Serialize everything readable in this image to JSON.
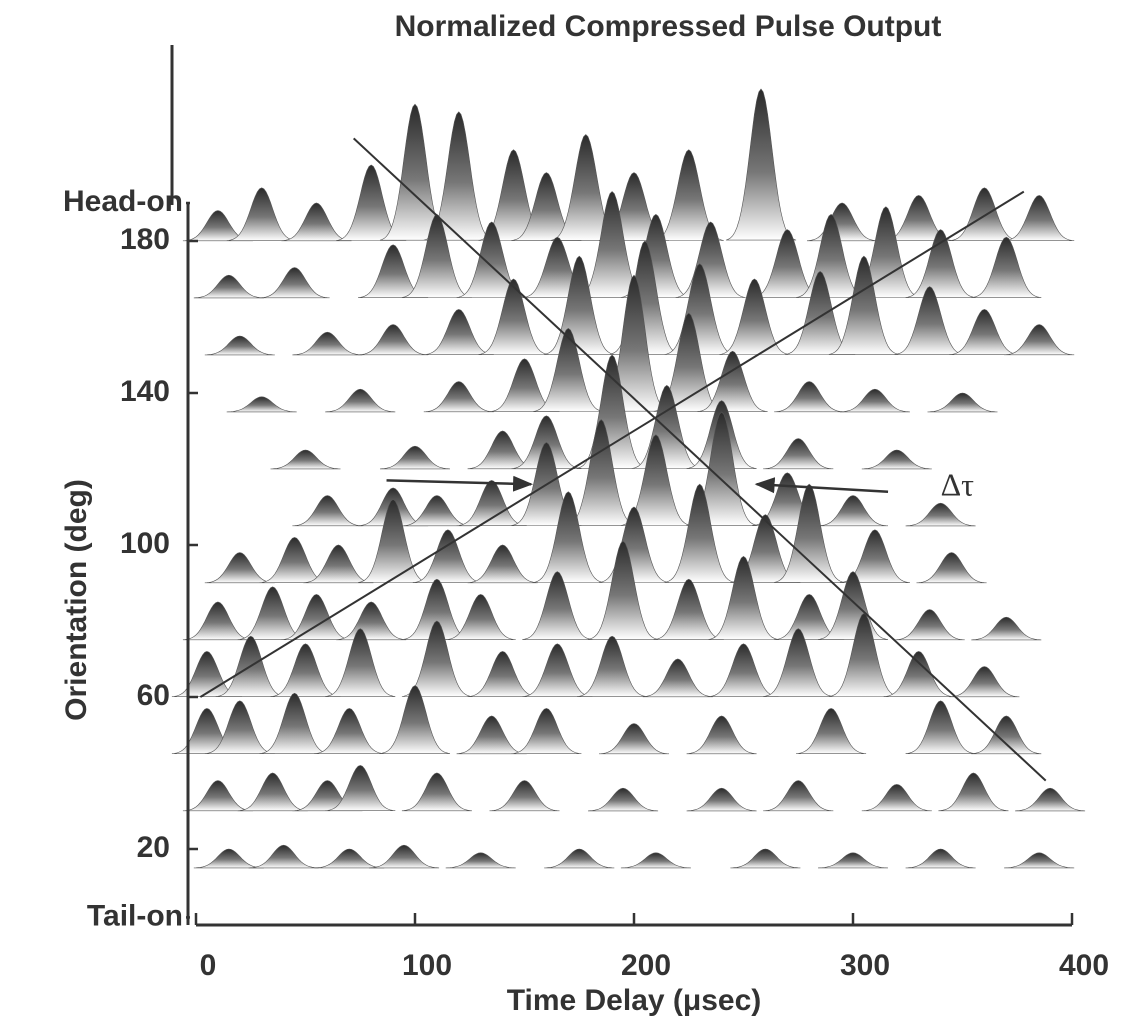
{
  "chart_data": {
    "type": "waterfall",
    "title": "Normalized Compressed Pulse Output",
    "x_label": "Time Delay (μsec)",
    "y_label": "Orientation (deg)",
    "xlim": [
      0,
      400
    ],
    "xticks": [
      0,
      100,
      200,
      300,
      400
    ],
    "ylim": [
      0,
      190
    ],
    "yticks": [
      {
        "value": 2,
        "label": "Tail-on"
      },
      20,
      60,
      100,
      140,
      180,
      {
        "value": 190,
        "label": "Head-on"
      }
    ],
    "color": "#2a2a2a",
    "rows": [
      {
        "orientation": 180,
        "peaks": [
          {
            "t": 10,
            "h": 8
          },
          {
            "t": 30,
            "h": 14
          },
          {
            "t": 55,
            "h": 10
          },
          {
            "t": 80,
            "h": 20
          },
          {
            "t": 100,
            "h": 36
          },
          {
            "t": 120,
            "h": 34
          },
          {
            "t": 145,
            "h": 24
          },
          {
            "t": 160,
            "h": 18
          },
          {
            "t": 178,
            "h": 28
          },
          {
            "t": 200,
            "h": 18
          },
          {
            "t": 225,
            "h": 24
          },
          {
            "t": 258,
            "h": 40
          },
          {
            "t": 295,
            "h": 10
          },
          {
            "t": 330,
            "h": 12
          },
          {
            "t": 360,
            "h": 14
          },
          {
            "t": 385,
            "h": 12
          }
        ]
      },
      {
        "orientation": 165,
        "peaks": [
          {
            "t": 15,
            "h": 6
          },
          {
            "t": 45,
            "h": 8
          },
          {
            "t": 90,
            "h": 14
          },
          {
            "t": 110,
            "h": 22
          },
          {
            "t": 135,
            "h": 20
          },
          {
            "t": 165,
            "h": 16
          },
          {
            "t": 190,
            "h": 28
          },
          {
            "t": 210,
            "h": 22
          },
          {
            "t": 235,
            "h": 20
          },
          {
            "t": 270,
            "h": 18
          },
          {
            "t": 290,
            "h": 22
          },
          {
            "t": 315,
            "h": 24
          },
          {
            "t": 340,
            "h": 18
          },
          {
            "t": 370,
            "h": 16
          }
        ]
      },
      {
        "orientation": 150,
        "peaks": [
          {
            "t": 20,
            "h": 5
          },
          {
            "t": 60,
            "h": 6
          },
          {
            "t": 90,
            "h": 8
          },
          {
            "t": 120,
            "h": 12
          },
          {
            "t": 145,
            "h": 20
          },
          {
            "t": 175,
            "h": 26
          },
          {
            "t": 205,
            "h": 30
          },
          {
            "t": 230,
            "h": 24
          },
          {
            "t": 255,
            "h": 20
          },
          {
            "t": 285,
            "h": 22
          },
          {
            "t": 305,
            "h": 26
          },
          {
            "t": 335,
            "h": 18
          },
          {
            "t": 360,
            "h": 12
          },
          {
            "t": 385,
            "h": 8
          }
        ]
      },
      {
        "orientation": 135,
        "peaks": [
          {
            "t": 30,
            "h": 4
          },
          {
            "t": 75,
            "h": 6
          },
          {
            "t": 120,
            "h": 8
          },
          {
            "t": 150,
            "h": 14
          },
          {
            "t": 170,
            "h": 22
          },
          {
            "t": 200,
            "h": 36
          },
          {
            "t": 225,
            "h": 26
          },
          {
            "t": 245,
            "h": 16
          },
          {
            "t": 280,
            "h": 8
          },
          {
            "t": 310,
            "h": 6
          },
          {
            "t": 350,
            "h": 5
          }
        ]
      },
      {
        "orientation": 120,
        "peaks": [
          {
            "t": 50,
            "h": 5
          },
          {
            "t": 100,
            "h": 6
          },
          {
            "t": 140,
            "h": 10
          },
          {
            "t": 160,
            "h": 14
          },
          {
            "t": 190,
            "h": 30
          },
          {
            "t": 215,
            "h": 22
          },
          {
            "t": 240,
            "h": 18
          },
          {
            "t": 275,
            "h": 8
          },
          {
            "t": 320,
            "h": 5
          }
        ]
      },
      {
        "orientation": 105,
        "peaks": [
          {
            "t": 60,
            "h": 8
          },
          {
            "t": 90,
            "h": 10
          },
          {
            "t": 110,
            "h": 8
          },
          {
            "t": 135,
            "h": 12
          },
          {
            "t": 160,
            "h": 22
          },
          {
            "t": 185,
            "h": 28
          },
          {
            "t": 210,
            "h": 24
          },
          {
            "t": 240,
            "h": 30
          },
          {
            "t": 270,
            "h": 14
          },
          {
            "t": 300,
            "h": 8
          },
          {
            "t": 340,
            "h": 6
          }
        ]
      },
      {
        "orientation": 90,
        "peaks": [
          {
            "t": 20,
            "h": 8
          },
          {
            "t": 45,
            "h": 12
          },
          {
            "t": 65,
            "h": 10
          },
          {
            "t": 90,
            "h": 22
          },
          {
            "t": 115,
            "h": 14
          },
          {
            "t": 140,
            "h": 10
          },
          {
            "t": 170,
            "h": 24
          },
          {
            "t": 200,
            "h": 20
          },
          {
            "t": 230,
            "h": 26
          },
          {
            "t": 260,
            "h": 18
          },
          {
            "t": 280,
            "h": 26
          },
          {
            "t": 310,
            "h": 14
          },
          {
            "t": 345,
            "h": 8
          }
        ]
      },
      {
        "orientation": 75,
        "peaks": [
          {
            "t": 10,
            "h": 10
          },
          {
            "t": 35,
            "h": 14
          },
          {
            "t": 55,
            "h": 12
          },
          {
            "t": 80,
            "h": 10
          },
          {
            "t": 110,
            "h": 16
          },
          {
            "t": 130,
            "h": 12
          },
          {
            "t": 165,
            "h": 18
          },
          {
            "t": 195,
            "h": 26
          },
          {
            "t": 225,
            "h": 16
          },
          {
            "t": 250,
            "h": 22
          },
          {
            "t": 280,
            "h": 12
          },
          {
            "t": 300,
            "h": 18
          },
          {
            "t": 335,
            "h": 8
          },
          {
            "t": 370,
            "h": 6
          }
        ]
      },
      {
        "orientation": 60,
        "peaks": [
          {
            "t": 5,
            "h": 12
          },
          {
            "t": 25,
            "h": 16
          },
          {
            "t": 50,
            "h": 14
          },
          {
            "t": 75,
            "h": 18
          },
          {
            "t": 110,
            "h": 20
          },
          {
            "t": 140,
            "h": 12
          },
          {
            "t": 165,
            "h": 14
          },
          {
            "t": 190,
            "h": 16
          },
          {
            "t": 220,
            "h": 10
          },
          {
            "t": 250,
            "h": 14
          },
          {
            "t": 275,
            "h": 18
          },
          {
            "t": 305,
            "h": 22
          },
          {
            "t": 330,
            "h": 12
          },
          {
            "t": 360,
            "h": 8
          }
        ]
      },
      {
        "orientation": 45,
        "peaks": [
          {
            "t": 5,
            "h": 12
          },
          {
            "t": 20,
            "h": 14
          },
          {
            "t": 45,
            "h": 16
          },
          {
            "t": 70,
            "h": 12
          },
          {
            "t": 100,
            "h": 18
          },
          {
            "t": 135,
            "h": 10
          },
          {
            "t": 160,
            "h": 12
          },
          {
            "t": 200,
            "h": 8
          },
          {
            "t": 240,
            "h": 10
          },
          {
            "t": 290,
            "h": 12
          },
          {
            "t": 340,
            "h": 14
          },
          {
            "t": 370,
            "h": 10
          }
        ]
      },
      {
        "orientation": 30,
        "peaks": [
          {
            "t": 10,
            "h": 8
          },
          {
            "t": 35,
            "h": 10
          },
          {
            "t": 60,
            "h": 8
          },
          {
            "t": 75,
            "h": 12
          },
          {
            "t": 110,
            "h": 10
          },
          {
            "t": 150,
            "h": 8
          },
          {
            "t": 195,
            "h": 6
          },
          {
            "t": 240,
            "h": 6
          },
          {
            "t": 275,
            "h": 8
          },
          {
            "t": 320,
            "h": 7
          },
          {
            "t": 355,
            "h": 10
          },
          {
            "t": 390,
            "h": 6
          }
        ]
      },
      {
        "orientation": 15,
        "peaks": [
          {
            "t": 15,
            "h": 5
          },
          {
            "t": 40,
            "h": 6
          },
          {
            "t": 70,
            "h": 5
          },
          {
            "t": 95,
            "h": 6
          },
          {
            "t": 130,
            "h": 4
          },
          {
            "t": 175,
            "h": 5
          },
          {
            "t": 210,
            "h": 4
          },
          {
            "t": 260,
            "h": 5
          },
          {
            "t": 300,
            "h": 4
          },
          {
            "t": 340,
            "h": 5
          },
          {
            "t": 385,
            "h": 4
          }
        ]
      }
    ],
    "lines": [
      {
        "x": [
          2,
          378
        ],
        "y": [
          60,
          193
        ]
      },
      {
        "x": [
          72,
          388
        ],
        "y": [
          207,
          38
        ]
      }
    ],
    "arrows": [
      {
        "x": [
          87,
          153
        ],
        "y": [
          117,
          116
        ]
      },
      {
        "x": [
          316,
          256
        ],
        "y": [
          114,
          116
        ]
      }
    ],
    "annotations": [
      {
        "text": "Δτ",
        "x": 340,
        "y": 115
      }
    ]
  }
}
